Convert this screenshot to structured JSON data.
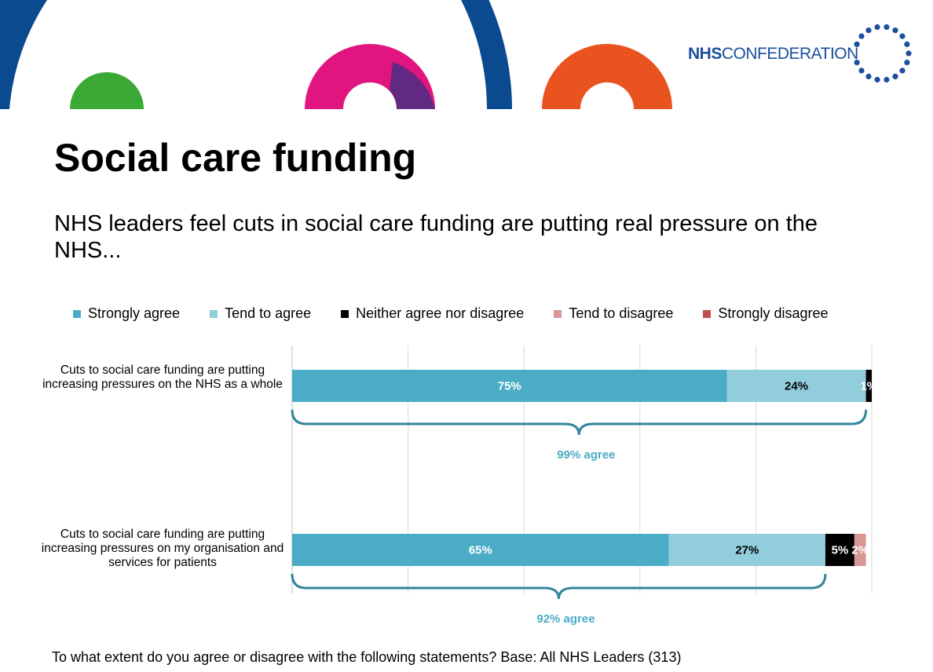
{
  "brand": {
    "logo_bold": "NHS",
    "logo_light": "CONFEDERATION",
    "colors": {
      "navy": "#0b4a8f",
      "green": "#3aa935",
      "magenta": "#e0157f",
      "purple": "#5b2a84",
      "orange": "#e9531f"
    }
  },
  "page": {
    "title": "Social care funding",
    "subtitle": "NHS leaders feel cuts in social care funding are putting real pressure on the NHS...",
    "footnote": "To what extent do you agree or disagree with the following statements? Base: All NHS Leaders (313)"
  },
  "chart_data": {
    "type": "bar",
    "orientation": "horizontal-stacked",
    "categories": [
      "Cuts to social care funding are putting increasing pressures on the NHS as a whole",
      "Cuts to social care funding are putting increasing pressures on my organisation and services for patients"
    ],
    "series": [
      {
        "name": "Strongly agree",
        "color": "#4bacc6",
        "values": [
          75,
          65
        ],
        "labels": [
          "75%",
          "65%"
        ]
      },
      {
        "name": "Tend to agree",
        "color": "#92cddc",
        "values": [
          24,
          27
        ],
        "labels": [
          "24%",
          "27%"
        ]
      },
      {
        "name": "Neither agree nor disagree",
        "color": "#000000",
        "values": [
          1,
          5
        ],
        "labels": [
          "1%",
          "5%"
        ]
      },
      {
        "name": "Tend to disagree",
        "color": "#d99694",
        "values": [
          0,
          2
        ],
        "labels": [
          "",
          "2%"
        ]
      },
      {
        "name": "Strongly disagree",
        "color": "#c0504d",
        "values": [
          0,
          0
        ],
        "labels": [
          "",
          ""
        ]
      }
    ],
    "brackets": [
      {
        "label": "99% agree",
        "value": 99
      },
      {
        "label": "92% agree",
        "value": 92
      }
    ],
    "xlim": [
      0,
      100
    ],
    "grid": true,
    "legend": "top"
  }
}
